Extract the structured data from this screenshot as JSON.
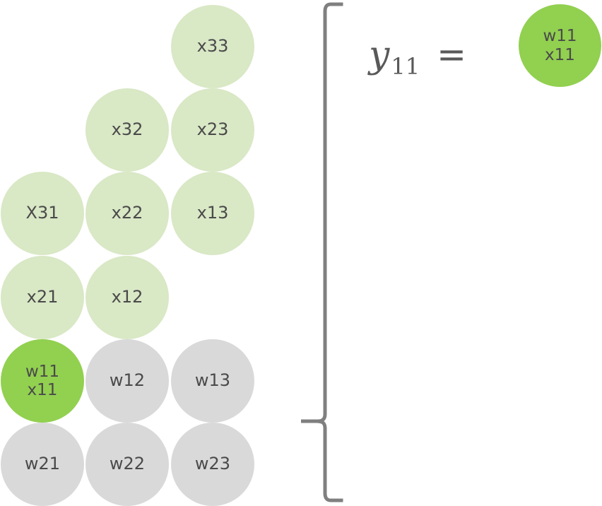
{
  "diagram": {
    "light_cells": [
      {
        "label": "x33"
      },
      {
        "label": "x32"
      },
      {
        "label": "x23"
      },
      {
        "label": "X31"
      },
      {
        "label": "x22"
      },
      {
        "label": "x13"
      },
      {
        "label": "x21"
      },
      {
        "label": "x12"
      }
    ],
    "active_cell": {
      "top": "w11",
      "bottom": "x11"
    },
    "gray_cells": [
      {
        "label": "w12"
      },
      {
        "label": "w13"
      },
      {
        "label": "w21"
      },
      {
        "label": "w22"
      },
      {
        "label": "w23"
      }
    ]
  },
  "formula": {
    "lhs_var": "y",
    "lhs_sub": "11",
    "equals": "=",
    "result": {
      "top": "w11",
      "bottom": "x11"
    }
  },
  "colors": {
    "light_green": "#d9e8c5",
    "active_green": "#92d050",
    "gray": "#d9d9d9",
    "text": "#4a4a4a",
    "bracket": "#7f7f7f"
  }
}
